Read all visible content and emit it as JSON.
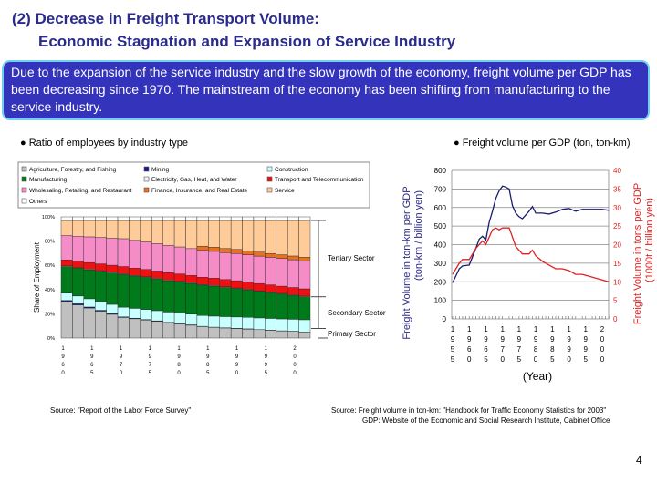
{
  "slide": {
    "title_line1": "(2) Decrease in Freight Transport Volume:",
    "title_line2": "Economic Stagnation and Expansion of Service Industry",
    "summary": "Due to the expansion of the service industry and the slow growth of the economy, freight volume per GDP has been decreasing since 1970. The mainstream of the economy has been shifting from manufacturing to the service industry.",
    "left_bullet": "Ratio of employees by industry type",
    "right_bullet": "Freight volume per GDP (ton, ton-km)",
    "left_source": "Source: \"Report of the Labor Force Survey\"",
    "right_source_line1": "Source: Freight volume in ton-km: \"Handbook for Traffic Economy Statistics for 2003\"",
    "right_source_line2": "GDP: Website of the Economic and Social Research Institute, Cabinet Office",
    "page_number": "4",
    "colors": {
      "title": "#2b2b8c",
      "summary_bg": "#3333bb",
      "summary_border": "#6fd0f0"
    }
  },
  "chart_data": [
    {
      "type": "bar",
      "stacked": true,
      "ylabel": "Share of Employment",
      "ylim": [
        0,
        100
      ],
      "yticks": [
        "0%",
        "20%",
        "40%",
        "60%",
        "80%",
        "100%"
      ],
      "xtick_labels": [
        "1960",
        "1965",
        "1970",
        "1975",
        "1980",
        "1985",
        "1990",
        "1995",
        "2000"
      ],
      "legend_placement": "top",
      "categories": [
        1960,
        1962,
        1964,
        1966,
        1968,
        1970,
        1972,
        1974,
        1976,
        1978,
        1980,
        1982,
        1984,
        1986,
        1988,
        1990,
        1992,
        1994,
        1996,
        1998,
        2000,
        2002
      ],
      "series": [
        {
          "name": "Agriculture, Forestry, and Fishing",
          "color": "#c0c0c0",
          "values": [
            30,
            27.4,
            24.8,
            22.2,
            19.6,
            17,
            15.9,
            14.9,
            13.8,
            12.7,
            11.7,
            10.6,
            9.5,
            8.8,
            8.3,
            7.8,
            7.4,
            6.9,
            6.4,
            5.9,
            5.5,
            5
          ]
        },
        {
          "name": "Mining",
          "color": "#1a1a8c",
          "values": [
            1,
            0.9,
            0.8,
            0.7,
            0.6,
            0.5,
            0.5,
            0.4,
            0.4,
            0.3,
            0.3,
            0.3,
            0.2,
            0.2,
            0.2,
            0.2,
            0.2,
            0.1,
            0.1,
            0.1,
            0.1,
            0.1
          ]
        },
        {
          "name": "Construction",
          "color": "#c8ffff",
          "values": [
            6,
            6.4,
            6.8,
            7.2,
            7.6,
            8,
            8.1,
            8.3,
            8.4,
            8.5,
            8.7,
            8.8,
            8.9,
            9.1,
            9.2,
            9.4,
            9.5,
            9.6,
            9.7,
            9.8,
            9.9,
            10
          ]
        },
        {
          "name": "Manufacturing",
          "color": "#007a1a",
          "values": [
            22,
            23,
            24,
            25,
            26,
            27,
            26.7,
            26.5,
            26.2,
            25.9,
            25.7,
            25.4,
            25.1,
            24.8,
            24.1,
            23.4,
            22.6,
            21.9,
            21.2,
            20.5,
            19.7,
            19
          ]
        },
        {
          "name": "Electricity, Gas, Heat, and Water",
          "color": "#f0f0ff",
          "values": [
            0.5,
            0.5,
            0.5,
            0.5,
            0.5,
            0.5,
            0.5,
            0.5,
            0.5,
            0.5,
            0.5,
            0.5,
            0.5,
            0.5,
            0.5,
            0.5,
            0.5,
            0.5,
            0.5,
            0.5,
            0.5,
            0.5
          ]
        },
        {
          "name": "Transport and Telecommunication",
          "color": "#ee1111",
          "values": [
            5,
            5.2,
            5.4,
            5.6,
            5.8,
            6,
            6,
            6,
            6,
            6,
            6,
            6,
            6,
            6,
            6,
            6,
            6,
            6,
            6,
            6,
            6,
            6
          ]
        },
        {
          "name": "Wholesaling, Retailing, and Restaurant",
          "color": "#f58cc8",
          "values": [
            20,
            20.6,
            21.2,
            21.8,
            22.4,
            23,
            22.9,
            22.7,
            22.6,
            22.5,
            22.3,
            22.2,
            22.1,
            22.1,
            22.2,
            22.4,
            22.5,
            22.6,
            22.7,
            22.8,
            22.9,
            23
          ]
        },
        {
          "name": "Finance, Insurance, and Real Estate",
          "color": "#e87020",
          "values": [
            0,
            0,
            0,
            0,
            0,
            0,
            0,
            0,
            0,
            0,
            0,
            0,
            3.5,
            3.5,
            3.4,
            3.4,
            3.3,
            3.3,
            3.2,
            3.1,
            3.1,
            3
          ]
        },
        {
          "name": "Service",
          "color": "#ffcc99",
          "values": [
            12.5,
            13,
            13.5,
            14,
            14.5,
            15,
            16.4,
            17.7,
            19.1,
            20.6,
            21.8,
            23.2,
            21.2,
            22,
            23.1,
            23.9,
            25,
            26.1,
            27.2,
            28.3,
            29.3,
            30.4
          ]
        },
        {
          "name": "Others",
          "color": "#ffffff",
          "values": [
            3,
            3,
            3,
            3,
            3,
            3,
            3,
            3,
            3,
            3,
            3,
            3,
            3,
            3,
            3,
            3,
            3,
            3,
            3,
            3,
            3,
            3
          ]
        }
      ],
      "annotations": [
        "Tertiary Sector",
        "Secondary Sector",
        "Primary Sector"
      ]
    },
    {
      "type": "line",
      "xlabel": "(Year)",
      "ylabel": "Freight Volume in ton-km per GDP (ton-km / billion yen)",
      "y2label": "Freight Volume in tons per GDP (1000t / billion yen)",
      "ylim": [
        0,
        800
      ],
      "y2lim": [
        0,
        40
      ],
      "yticks": [
        0,
        100,
        200,
        300,
        400,
        500,
        600,
        700,
        800
      ],
      "y2ticks": [
        0,
        5,
        10,
        15,
        20,
        25,
        30,
        35,
        40
      ],
      "xtick_labels": [
        "1955",
        "1960",
        "1965",
        "1970",
        "1975",
        "1980",
        "1985",
        "1990",
        "1995",
        "2000"
      ],
      "grid": true,
      "series": [
        {
          "axis": "left",
          "color": "#1a1a6e",
          "x": [
            1955,
            1957,
            1958,
            1960,
            1962,
            1963,
            1964,
            1965,
            1966,
            1967,
            1968,
            1969,
            1970,
            1971,
            1972,
            1973,
            1974,
            1975,
            1976,
            1977,
            1978,
            1979,
            1980,
            1982,
            1984,
            1986,
            1988,
            1990,
            1992,
            1994,
            1996,
            1998,
            2000,
            2002
          ],
          "y": [
            195,
            270,
            285,
            290,
            380,
            430,
            445,
            425,
            520,
            580,
            650,
            690,
            715,
            710,
            700,
            610,
            570,
            550,
            540,
            560,
            580,
            605,
            570,
            570,
            565,
            575,
            590,
            595,
            580,
            590,
            590,
            590,
            590,
            585
          ]
        },
        {
          "axis": "right",
          "color": "#dd2222",
          "x": [
            1955,
            1957,
            1958,
            1960,
            1962,
            1964,
            1965,
            1966,
            1967,
            1968,
            1969,
            1970,
            1972,
            1973,
            1974,
            1976,
            1978,
            1979,
            1980,
            1982,
            1984,
            1986,
            1988,
            1990,
            1992,
            1994,
            1996,
            1998,
            2000,
            2002
          ],
          "y": [
            12,
            15,
            16,
            16,
            19,
            21,
            20,
            22,
            24,
            24.5,
            24,
            24.5,
            24.5,
            22,
            19.5,
            17.5,
            17.5,
            18.5,
            17,
            15.5,
            14.5,
            13.5,
            13.5,
            13,
            12,
            12,
            11.5,
            11,
            10.5,
            10
          ]
        }
      ]
    }
  ]
}
